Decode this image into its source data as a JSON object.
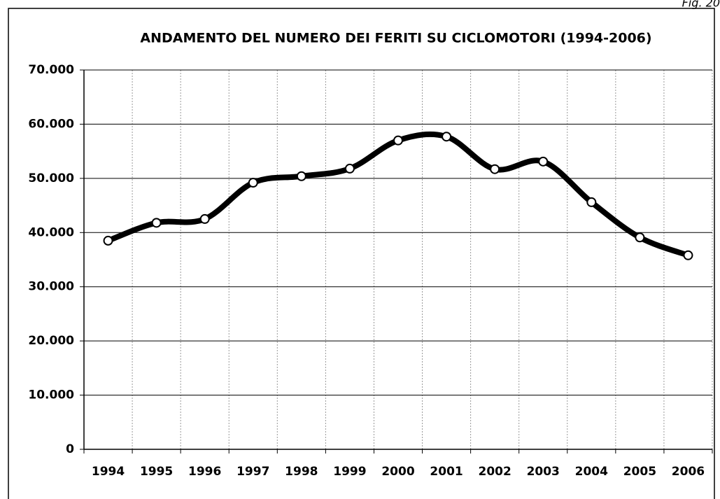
{
  "chart_data": {
    "type": "line",
    "title": "ANDAMENTO DEL NUMERO DEI FERITI SU CICLOMOTORI (1994-2006)",
    "annotation": "Fig. 20",
    "categories": [
      "1994",
      "1995",
      "1996",
      "1997",
      "1998",
      "1999",
      "2000",
      "2001",
      "2002",
      "2003",
      "2004",
      "2005",
      "2006"
    ],
    "series": [
      {
        "name": "Feriti",
        "color": "#000000",
        "values": [
          38500,
          41800,
          42500,
          49200,
          50400,
          51800,
          57000,
          57700,
          51700,
          53100,
          45600,
          39100,
          35800
        ]
      }
    ],
    "ylim": [
      0,
      70000
    ],
    "yticks": [
      0,
      {
        "value": 10000,
        "label": "10.000"
      },
      {
        "value": 20000,
        "label": "20.000"
      },
      {
        "value": 30000,
        "label": "30.000"
      },
      {
        "value": 40000,
        "label": "40.000"
      },
      {
        "value": 50000,
        "label": "50.000"
      },
      {
        "value": 60000,
        "label": "60.000"
      },
      {
        "value": 70000,
        "label": "70.000"
      }
    ],
    "grid": true
  }
}
